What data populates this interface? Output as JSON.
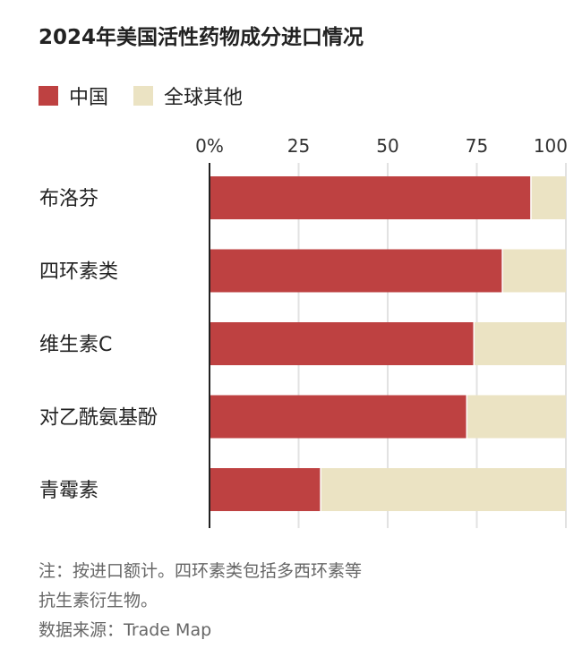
{
  "chart_data": {
    "type": "bar",
    "stacked": true,
    "orientation": "horizontal",
    "title": "2024年美国活性药物成分进口情况",
    "categories": [
      "布洛芬",
      "四环素类",
      "维生素C",
      "对乙酰氨基酚",
      "青霉素"
    ],
    "series": [
      {
        "name": "中国",
        "values": [
          90,
          82,
          74,
          72,
          31
        ],
        "color": "#be4141"
      },
      {
        "name": "全球其他",
        "values": [
          10,
          18,
          26,
          28,
          69
        ],
        "color": "#ebe3c3"
      }
    ],
    "xlim": [
      0,
      100
    ],
    "xticks": [
      "0%",
      "25",
      "50",
      "75",
      "100"
    ],
    "xtick_values": [
      0,
      25,
      50,
      75,
      100
    ],
    "grid": true,
    "legend_placement": "top-left"
  },
  "notes": {
    "line1": "注：按进口额计。四环素类包括多西环素等",
    "line2": "抗生素衍生物。",
    "source": "数据来源：Trade Map"
  }
}
